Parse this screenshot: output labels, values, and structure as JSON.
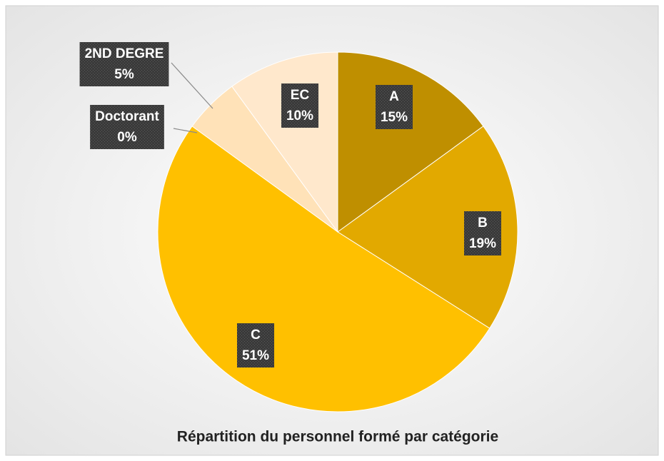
{
  "chart_data": {
    "type": "pie",
    "title": "Répartition du personnel formé par catégorie",
    "categories": [
      "A",
      "B",
      "C",
      "Doctorant",
      "2ND DEGRE",
      "EC"
    ],
    "values": [
      15,
      19,
      51,
      0,
      5,
      10
    ],
    "value_labels": [
      "15%",
      "19%",
      "51%",
      "0%",
      "5%",
      "10%"
    ],
    "colors": [
      "#bf8f00",
      "#e2a900",
      "#ffc000",
      "#ffd88a",
      "#ffe2b8",
      "#ffe8cc"
    ]
  }
}
